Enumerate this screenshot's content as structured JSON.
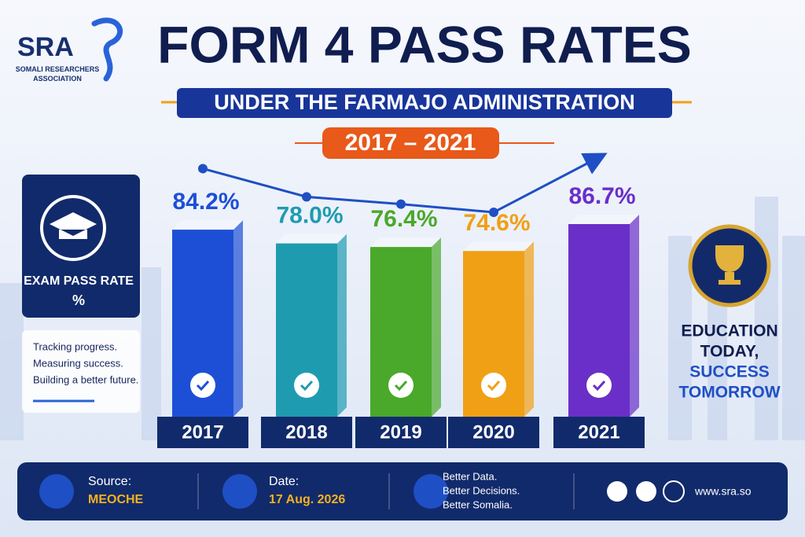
{
  "logo": {
    "name": "SRA",
    "full_name": "SOMALI RESEARCHERS ASSOCIATION"
  },
  "chart_data": {
    "type": "bar",
    "title": "FORM 4 PASS RATES",
    "subtitle": "UNDER THE FARMAJO ADMINISTRATION",
    "period": "2017 – 2021",
    "categories": [
      "2017",
      "2018",
      "2019",
      "2020",
      "2021"
    ],
    "values": [
      84.2,
      78.0,
      76.4,
      74.6,
      86.7
    ],
    "value_labels": [
      "84.2%",
      "78.0%",
      "76.4%",
      "74.6%",
      "86.7%"
    ],
    "colors": [
      "#1d4fd6",
      "#1f9bb0",
      "#4aa82a",
      "#f0a015",
      "#6a2fc8"
    ],
    "trend_line": true
  },
  "side_panel": {
    "title": "EXAM PASS RATE",
    "unit": "%",
    "taglines": [
      "Tracking progress.",
      "Measuring success.",
      "Building a better future."
    ]
  },
  "motto": {
    "line1": "EDUCATION",
    "line2": "TODAY,",
    "line3": "SUCCESS",
    "line4": "TOMORROW"
  },
  "footer": {
    "source_label": "Source:",
    "source": "MEOCHE",
    "date_label": "Date:",
    "date": "17 Aug. 2026",
    "slogans": [
      "Better Data.",
      "Better Decisions.",
      "Better Somalia."
    ],
    "website": "www.sra.so"
  }
}
